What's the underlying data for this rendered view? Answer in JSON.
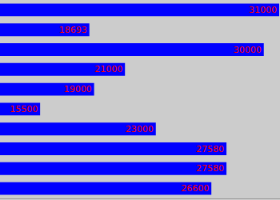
{
  "chart_data": {
    "type": "bar",
    "orientation": "horizontal",
    "categories": [
      null,
      null,
      null,
      null,
      null,
      null,
      null,
      null,
      null,
      null
    ],
    "values": [
      31000,
      18693,
      30000,
      21000,
      19000,
      15500,
      23000,
      27580,
      27580,
      26600
    ],
    "color": "#0000ff",
    "xlim": [
      12900,
      31050
    ],
    "grid": false,
    "data_labels": true,
    "tick_labels": false
  }
}
